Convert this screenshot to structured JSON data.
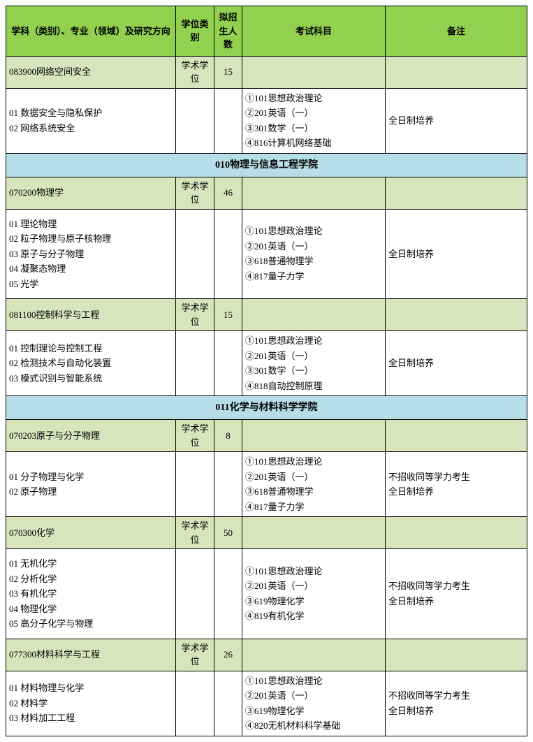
{
  "colors": {
    "header_bg": "#92d050",
    "section_bg": "#b7dee8",
    "subject_bg": "#d8e4bc",
    "border": "#000000",
    "page_bg": "#ffffff"
  },
  "headers": {
    "col1": "学科（类别）、专业（领域）及研究方向",
    "col2": "学位类别",
    "col3": "拟招生人数",
    "col4": "考试科目",
    "col5": "备注"
  },
  "sections": [
    {
      "title": null,
      "subjects": [
        {
          "code_name": "083900网络空间安全",
          "degree_type": "学术学位",
          "quota": "15",
          "directions": [
            "01  数据安全与隐私保护",
            "02  网络系统安全"
          ],
          "exams": [
            "①101思想政治理论",
            "②201英语（一）",
            "③301数学（一）",
            "④816计算机网络基础"
          ],
          "remarks": [
            "全日制培养"
          ]
        }
      ]
    },
    {
      "title": "010物理与信息工程学院",
      "subjects": [
        {
          "code_name": "070200物理学",
          "degree_type": "学术学位",
          "quota": "46",
          "directions": [
            "01  理论物理",
            "02  粒子物理与原子核物理",
            "03  原子与分子物理",
            "04  凝聚态物理",
            "05  光学"
          ],
          "exams": [
            "①101思想政治理论",
            "②201英语（一）",
            "③618普通物理学",
            "④817量子力学"
          ],
          "remarks": [
            "全日制培养"
          ]
        },
        {
          "code_name": "081100控制科学与工程",
          "degree_type": "学术学位",
          "quota": "15",
          "directions": [
            "01  控制理论与控制工程",
            "02  检测技术与自动化装置",
            "03  模式识别与智能系统"
          ],
          "exams": [
            "①101思想政治理论",
            "②201英语（一）",
            "③301数学（一）",
            "④818自动控制原理"
          ],
          "remarks": [
            "全日制培养"
          ]
        }
      ]
    },
    {
      "title": "011化学与材料科学学院",
      "subjects": [
        {
          "code_name": "070203原子与分子物理",
          "degree_type": "学术学位",
          "quota": "8",
          "directions": [
            "01  分子物理与化学",
            "02  原子物理"
          ],
          "exams": [
            "①101思想政治理论",
            "②201英语（一）",
            "③618普通物理学",
            "④817量子力学"
          ],
          "remarks": [
            "不招收同等学力考生",
            "全日制培养"
          ]
        },
        {
          "code_name": "070300化学",
          "degree_type": "学术学位",
          "quota": "50",
          "directions": [
            "01  无机化学",
            "02  分析化学",
            "03  有机化学",
            "04  物理化学",
            "05  高分子化学与物理"
          ],
          "exams": [
            "①101思想政治理论",
            "②201英语（一）",
            "③619物理化学",
            "④819有机化学"
          ],
          "remarks": [
            "不招收同等学力考生",
            "全日制培养"
          ]
        },
        {
          "code_name": "077300材料科学与工程",
          "degree_type": "学术学位",
          "quota": "26",
          "directions": [
            "01  材料物理与化学",
            "02  材料学",
            "03  材料加工工程"
          ],
          "exams": [
            "①101思想政治理论",
            "②201英语（一）",
            "③619物理化学",
            "④820无机材料科学基础"
          ],
          "remarks": [
            "不招收同等学力考生",
            "全日制培养"
          ]
        }
      ]
    }
  ]
}
